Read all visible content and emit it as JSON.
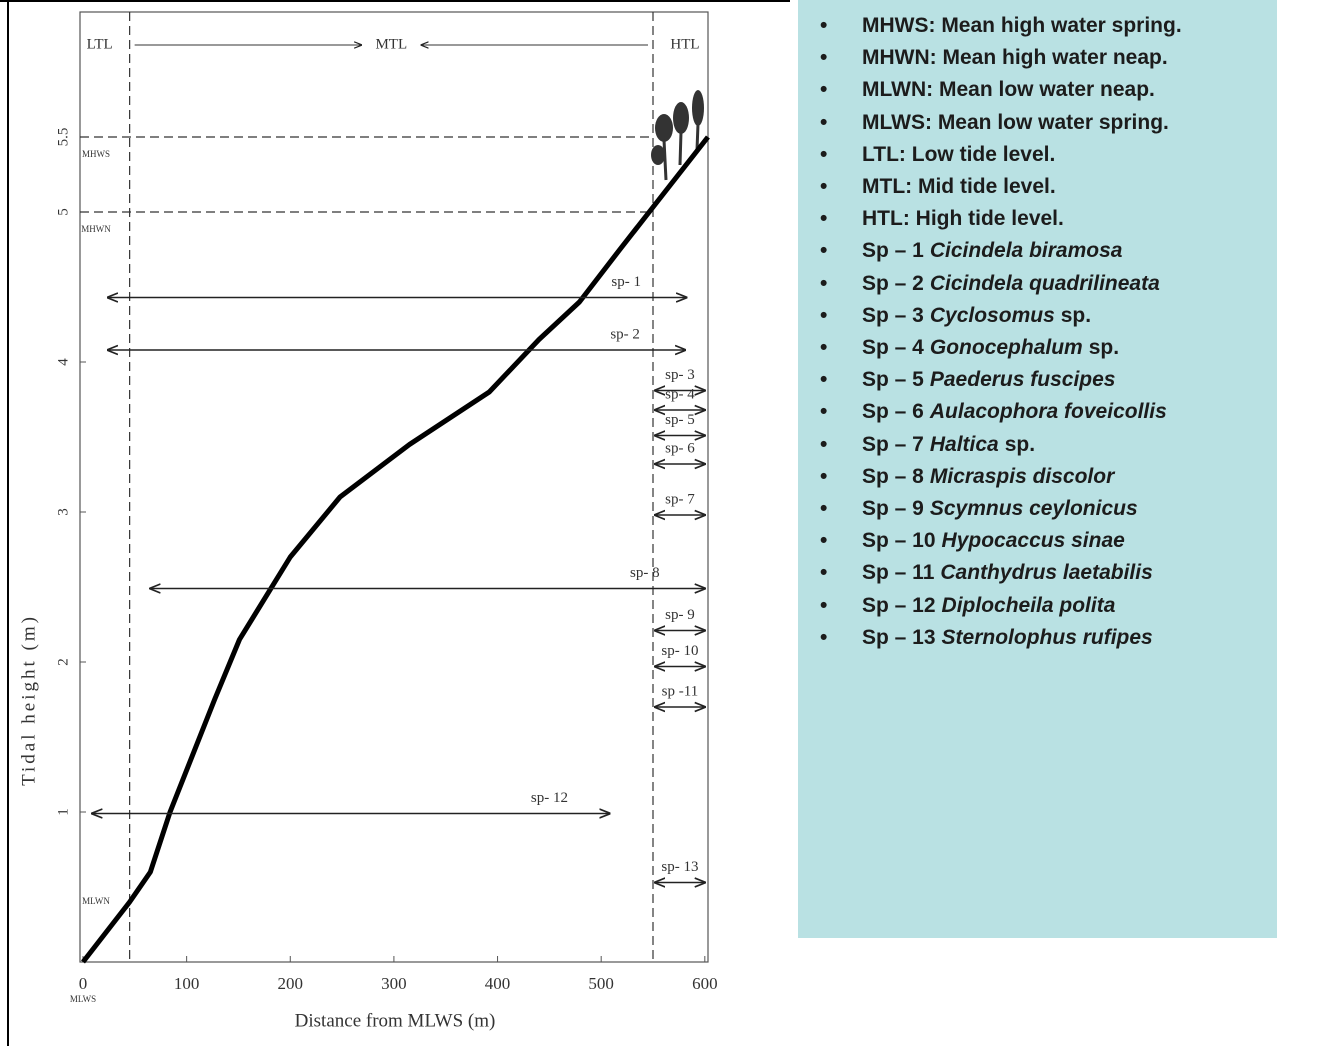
{
  "chart_data": {
    "type": "line",
    "xlabel": "Distance from MLWS (m)",
    "ylabel": "Tidal height (m)",
    "xlim": [
      0,
      605
    ],
    "ylim": [
      0,
      6.3
    ],
    "xticks": [
      0,
      100,
      200,
      300,
      400,
      500,
      600
    ],
    "yticks": [
      1,
      2,
      3,
      4,
      5,
      5.5
    ],
    "x_origin_label": "MLWS",
    "x": [
      0,
      45,
      65,
      84,
      127,
      151,
      200,
      248,
      315,
      392,
      440,
      479,
      518,
      552,
      603
    ],
    "values": [
      0,
      0.4,
      0.6,
      1.0,
      1.75,
      2.15,
      2.7,
      3.1,
      3.45,
      3.8,
      4.15,
      4.4,
      4.75,
      5.05,
      5.5
    ],
    "color": "#000000",
    "levels": [
      {
        "label": "MHWS",
        "value": 5.5,
        "dashed": true
      },
      {
        "label": "MHWN",
        "value": 5,
        "dashed": true
      },
      {
        "label": "MLWN",
        "value": 0.4,
        "dashed": false
      }
    ],
    "boundaries": [
      {
        "label": "LTL",
        "value": 45
      },
      {
        "label": "HTL",
        "value": 550
      }
    ],
    "mid_label": "MTL",
    "ranges": [
      {
        "name": "sp- 1",
        "start": 24,
        "end": 582,
        "height": 4.43
      },
      {
        "name": "sp- 2",
        "start": 24,
        "end": 581,
        "height": 4.08
      },
      {
        "name": "sp- 3",
        "start": 552,
        "end": 600,
        "height": 3.81
      },
      {
        "name": "sp- 4",
        "start": 552,
        "end": 600,
        "height": 3.68
      },
      {
        "name": "sp- 5",
        "start": 552,
        "end": 600,
        "height": 3.51
      },
      {
        "name": "sp- 6",
        "start": 552,
        "end": 600,
        "height": 3.32
      },
      {
        "name": "sp- 7",
        "start": 552,
        "end": 600,
        "height": 2.98
      },
      {
        "name": "sp- 8",
        "start": 65,
        "end": 600,
        "height": 2.49
      },
      {
        "name": "sp- 9",
        "start": 552,
        "end": 600,
        "height": 2.21
      },
      {
        "name": "sp- 10",
        "start": 552,
        "end": 600,
        "height": 1.97
      },
      {
        "name": "sp -11",
        "start": 552,
        "end": 600,
        "height": 1.7
      },
      {
        "name": "sp- 12",
        "start": 9,
        "end": 508,
        "height": 0.99
      },
      {
        "name": "sp- 13",
        "start": 552,
        "end": 600,
        "height": 0.53
      }
    ]
  },
  "key": [
    {
      "prefix": "MHWS: Mean high water spring."
    },
    {
      "prefix": "MHWN: Mean high water neap."
    },
    {
      "prefix": "MLWN: Mean low water neap."
    },
    {
      "prefix": "MLWS: Mean low water spring."
    },
    {
      "prefix": "LTL: Low tide level."
    },
    {
      "prefix": "MTL: Mid tide level."
    },
    {
      "prefix": "HTL: High tide level."
    },
    {
      "prefix": "Sp – 1",
      "name": "Cicindela biramosa"
    },
    {
      "prefix": "Sp – 2",
      "name": "Cicindela quadrilineata"
    },
    {
      "prefix": "Sp – 3",
      "name": "Cyclosomus",
      "suffix": "sp."
    },
    {
      "prefix": "Sp – 4",
      "name": "Gonocephalum",
      "suffix": "sp."
    },
    {
      "prefix": "Sp – 5",
      "name": "Paederus fuscipes"
    },
    {
      "prefix": "Sp – 6",
      "name": "Aulacophora foveicollis"
    },
    {
      "prefix": "Sp – 7",
      "name": "Haltica",
      "suffix": "sp."
    },
    {
      "prefix": "Sp – 8",
      "name": "Micraspis discolor"
    },
    {
      "prefix": "Sp – 9",
      "name": "Scymnus ceylonicus"
    },
    {
      "prefix": "Sp – 10",
      "name": "Hypocaccus sinae"
    },
    {
      "prefix": "Sp – 11",
      "name": "Canthydrus laetabilis"
    },
    {
      "prefix": "Sp – 12",
      "name": "Diplocheila polita"
    },
    {
      "prefix": "Sp – 13",
      "name": "Sternolophus rufipes"
    }
  ]
}
